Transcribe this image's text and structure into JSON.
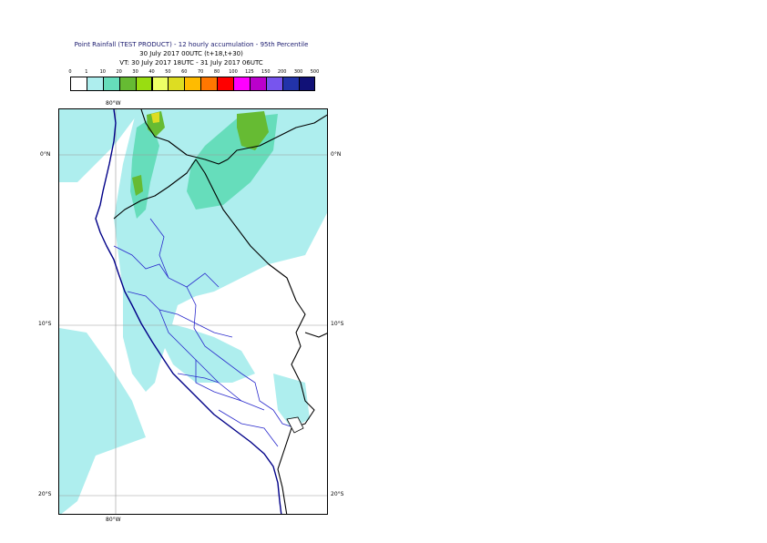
{
  "title": {
    "line1": "Point Rainfall (TEST PRODUCT) - 12 hourly accumulation - 95th Percentile",
    "line2": "30 July 2017 00UTC (t+18,t+30)",
    "line3": "VT: 30 July 2017 18UTC - 31 July 2017 06UTC"
  },
  "legend": {
    "ticks": [
      "0",
      "1",
      "10",
      "20",
      "30",
      "40",
      "50",
      "60",
      "70",
      "80",
      "100",
      "125",
      "150",
      "200",
      "300",
      "500"
    ],
    "colors": [
      "#ffffff",
      "#aeeeee",
      "#66ddbb",
      "#66bb33",
      "#99dd11",
      "#eeff66",
      "#dddd22",
      "#ffbb00",
      "#ff7700",
      "#ff0000",
      "#ff00ff",
      "#bb00cc",
      "#7755ee",
      "#2233aa",
      "#111177"
    ]
  },
  "axes": {
    "lon_top": "80°W",
    "lon_bottom": "80°W",
    "lat_0_left": "0°N",
    "lat_0_right": "0°N",
    "lat_10_left": "10°S",
    "lat_10_right": "10°S",
    "lat_20_left": "20°S",
    "lat_20_right": "20°S"
  }
}
